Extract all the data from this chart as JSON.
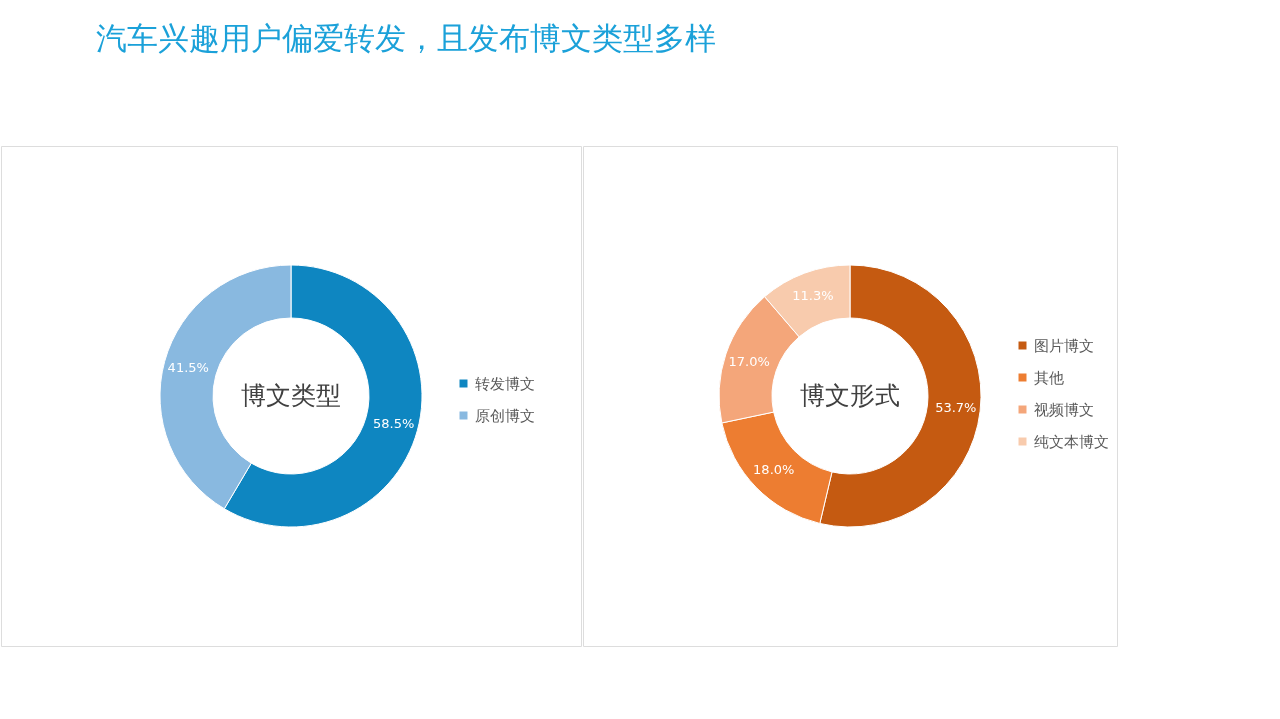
{
  "chart_data": [
    {
      "type": "donut",
      "title": "汽车兴趣用户偏爱转发，且发布博文类型多样",
      "annotations": [
        "博文类型"
      ],
      "categories": [
        "转发博文",
        "原创博文"
      ],
      "values": [
        58.5,
        41.5
      ],
      "value_labels": [
        "58.5%",
        "41.5%"
      ],
      "colors": [
        "#0e86c1",
        "#89b9e0"
      ],
      "legend": "right"
    },
    {
      "type": "donut",
      "annotations": [
        "博文形式"
      ],
      "categories": [
        "图片博文",
        "其他",
        "视频博文",
        "纯文本博文"
      ],
      "values": [
        53.7,
        18.0,
        17.0,
        11.3
      ],
      "value_labels": [
        "53.7%",
        "18.0%",
        "17.0%",
        "11.3%"
      ],
      "colors": [
        "#c55a11",
        "#ed7d31",
        "#f4a67a",
        "#f8cbad"
      ],
      "legend": "right"
    }
  ]
}
